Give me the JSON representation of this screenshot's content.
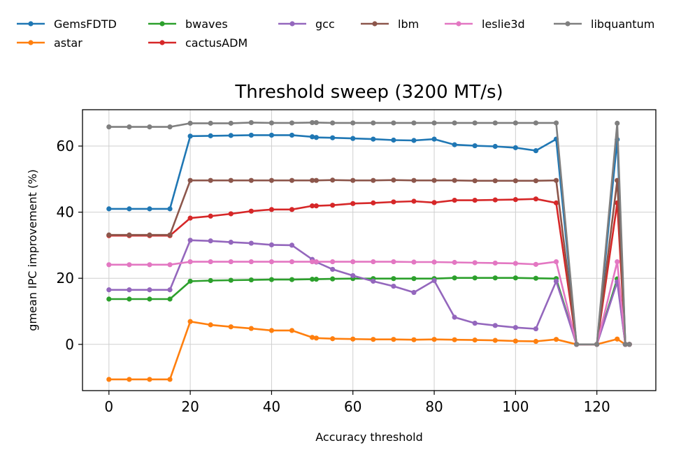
{
  "chart_data": {
    "type": "line",
    "title": "Threshold sweep (3200 MT/s)",
    "xlabel": "Accuracy threshold",
    "ylabel": "gmean IPC improvement (%)",
    "xlim": [
      -6.5,
      134.5
    ],
    "ylim": [
      -14,
      71
    ],
    "xticks": [
      0,
      20,
      40,
      60,
      80,
      100,
      120
    ],
    "yticks": [
      0,
      20,
      40,
      60
    ],
    "grid": true,
    "legend_position": "top",
    "x": [
      0,
      5,
      10,
      15,
      20,
      25,
      30,
      35,
      40,
      45,
      50,
      51,
      55,
      60,
      65,
      70,
      75,
      80,
      85,
      90,
      95,
      100,
      105,
      110,
      115,
      120,
      125,
      127,
      128
    ],
    "series": [
      {
        "name": "GemsFDTD",
        "color": "#1f77b4",
        "values": [
          41,
          41,
          41,
          41,
          63,
          63.1,
          63.2,
          63.3,
          63.3,
          63.3,
          62.8,
          62.6,
          62.5,
          62.3,
          62.1,
          61.8,
          61.7,
          62.1,
          60.4,
          60.1,
          59.9,
          59.5,
          58.6,
          62.1,
          0,
          0,
          62,
          0,
          0
        ]
      },
      {
        "name": "astar",
        "color": "#ff7f0e",
        "values": [
          -10.6,
          -10.6,
          -10.6,
          -10.6,
          6.9,
          5.9,
          5.3,
          4.8,
          4.2,
          4.2,
          2.1,
          1.9,
          1.7,
          1.6,
          1.5,
          1.5,
          1.4,
          1.5,
          1.4,
          1.3,
          1.2,
          1.0,
          0.9,
          1.5,
          0,
          0,
          1.6,
          0,
          0
        ]
      },
      {
        "name": "bwaves",
        "color": "#2ca02c",
        "values": [
          13.7,
          13.7,
          13.7,
          13.7,
          19.1,
          19.3,
          19.4,
          19.5,
          19.6,
          19.6,
          19.7,
          19.7,
          19.8,
          19.9,
          19.9,
          19.9,
          19.9,
          19.9,
          20.1,
          20.1,
          20.1,
          20.1,
          20.0,
          19.9,
          0,
          0,
          19.8,
          0,
          0
        ]
      },
      {
        "name": "cactusADM",
        "color": "#d62728",
        "values": [
          32.9,
          32.9,
          32.9,
          32.9,
          38.2,
          38.8,
          39.5,
          40.3,
          40.8,
          40.8,
          41.9,
          41.9,
          42.1,
          42.6,
          42.8,
          43.1,
          43.3,
          42.9,
          43.6,
          43.6,
          43.7,
          43.8,
          44.0,
          42.8,
          0,
          0,
          42.8,
          0,
          0
        ]
      },
      {
        "name": "gcc",
        "color": "#9467bd",
        "values": [
          16.5,
          16.5,
          16.5,
          16.5,
          31.5,
          31.3,
          30.9,
          30.6,
          30.1,
          30.0,
          25.7,
          24.9,
          22.7,
          20.8,
          19.1,
          17.6,
          15.7,
          19.3,
          8.2,
          6.4,
          5.7,
          5.1,
          4.7,
          19.1,
          0,
          0,
          18.9,
          0,
          0
        ]
      },
      {
        "name": "lbm",
        "color": "#8c564b",
        "values": [
          33.1,
          33.1,
          33.1,
          33.1,
          49.6,
          49.6,
          49.6,
          49.6,
          49.6,
          49.6,
          49.6,
          49.6,
          49.7,
          49.6,
          49.6,
          49.7,
          49.6,
          49.6,
          49.6,
          49.5,
          49.5,
          49.5,
          49.5,
          49.6,
          0,
          0,
          49.6,
          0,
          0
        ]
      },
      {
        "name": "leslie3d",
        "color": "#e377c2",
        "values": [
          24.1,
          24.1,
          24.1,
          24.1,
          25.0,
          25.0,
          25.0,
          25.0,
          25.0,
          25.0,
          25.0,
          25.0,
          25.0,
          25.0,
          25.0,
          25.0,
          24.9,
          24.9,
          24.8,
          24.7,
          24.6,
          24.5,
          24.2,
          25.0,
          0,
          0,
          25.0,
          0,
          0
        ]
      },
      {
        "name": "libquantum",
        "color": "#7f7f7f",
        "values": [
          65.8,
          65.8,
          65.8,
          65.8,
          66.9,
          66.9,
          66.9,
          67.1,
          67.0,
          67.0,
          67.1,
          67.1,
          67.0,
          67.0,
          67.0,
          67.0,
          67.0,
          67.0,
          67.0,
          67.0,
          67.0,
          67.0,
          67.0,
          67.0,
          0,
          0,
          66.9,
          0,
          0
        ]
      }
    ]
  }
}
